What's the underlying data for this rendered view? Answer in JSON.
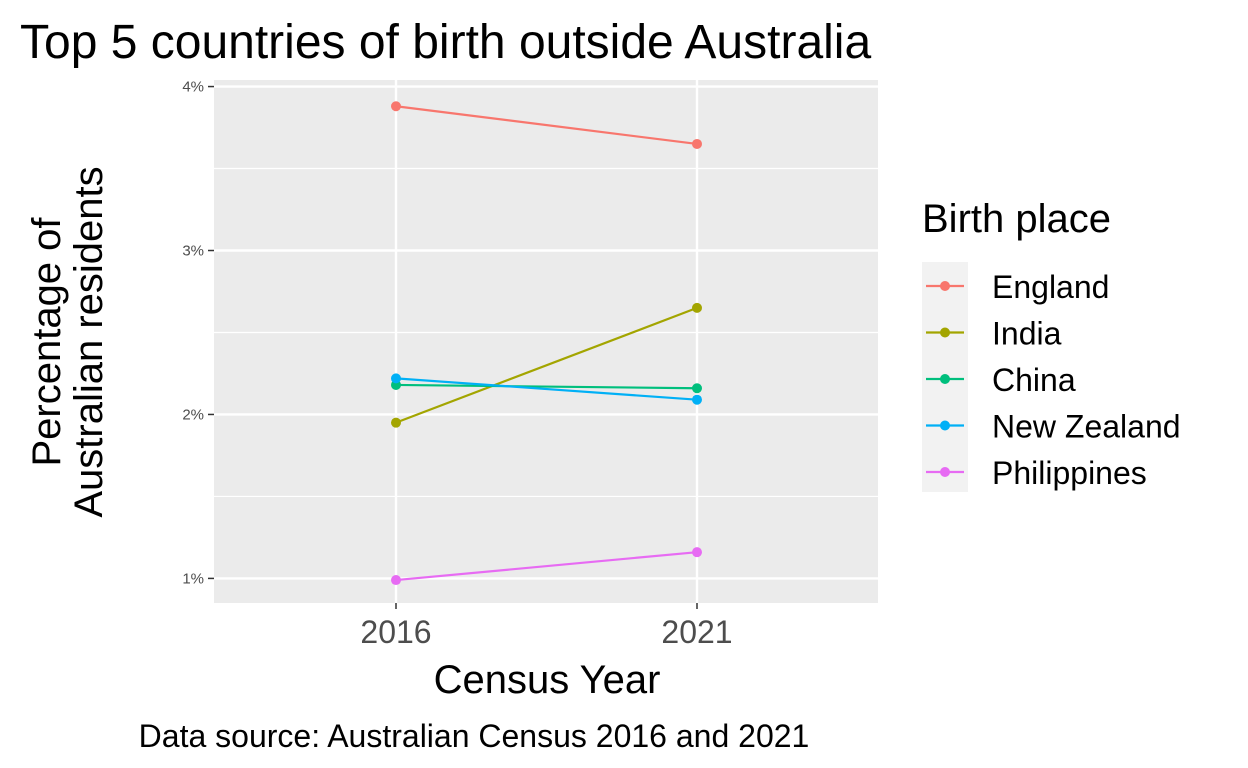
{
  "chart_data": {
    "type": "line",
    "title": "Top 5 countries of birth outside Australia",
    "xlabel": "Census Year",
    "ylabel_lines": [
      "Percentage of",
      "Australian residents"
    ],
    "caption": "Data source: Australian Census 2016 and 2021",
    "categories": [
      "2016",
      "2021"
    ],
    "y_ticks": [
      1,
      2,
      3,
      4
    ],
    "y_tick_labels": [
      "1%",
      "2%",
      "3%",
      "4%"
    ],
    "ylim": [
      0.85,
      4.04
    ],
    "grid": true,
    "legend": {
      "title": "Birth place",
      "placement": "right"
    },
    "series": [
      {
        "name": "England",
        "color": "#F8766D",
        "values": [
          3.88,
          3.65
        ]
      },
      {
        "name": "India",
        "color": "#A3A500",
        "values": [
          1.95,
          2.65
        ]
      },
      {
        "name": "China",
        "color": "#00BF7D",
        "values": [
          2.18,
          2.16
        ]
      },
      {
        "name": "New Zealand",
        "color": "#00B0F6",
        "values": [
          2.22,
          2.09
        ]
      },
      {
        "name": "Philippines",
        "color": "#E76BF3",
        "values": [
          0.99,
          1.16
        ]
      }
    ]
  }
}
